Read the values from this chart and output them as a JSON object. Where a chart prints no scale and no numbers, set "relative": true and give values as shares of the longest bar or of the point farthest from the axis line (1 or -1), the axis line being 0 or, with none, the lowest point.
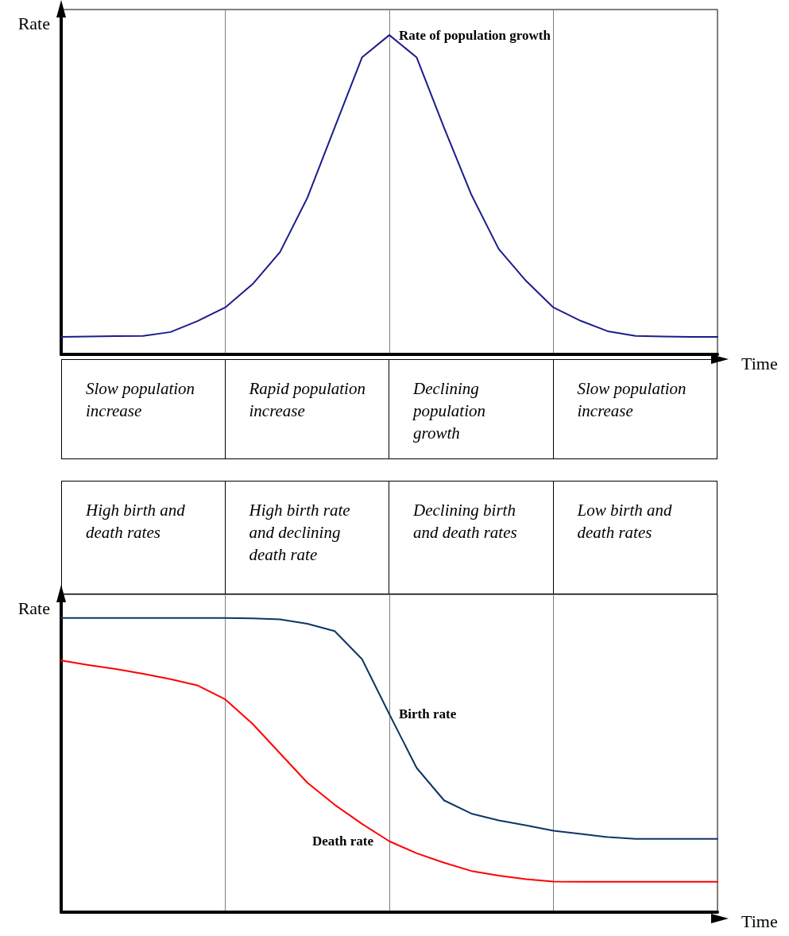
{
  "chart_data": [
    {
      "type": "line",
      "relative": true,
      "xlabel": "Time",
      "ylabel": "Rate",
      "grid": "x",
      "marker": "none",
      "line_style": "solid",
      "categories": [
        null,
        null,
        null,
        null,
        null,
        null,
        null,
        null,
        null,
        null,
        null,
        null,
        null,
        null,
        null,
        null,
        null,
        null,
        null,
        null,
        null,
        null,
        null,
        null,
        null
      ],
      "annotations": [
        "Slow population increase",
        "Rapid population increase",
        "Declining population growth",
        "Slow population increase"
      ],
      "series": [
        {
          "name": "Rate of population growth",
          "color": "#1c1c8c",
          "values": [
            0.055,
            0.056,
            0.057,
            0.058,
            0.07,
            0.105,
            0.147,
            0.22,
            0.32,
            0.49,
            0.71,
            0.93,
            1.0,
            0.93,
            0.71,
            0.5,
            0.33,
            0.23,
            0.147,
            0.105,
            0.072,
            0.058,
            0.056,
            0.055,
            0.055
          ]
        }
      ]
    },
    {
      "type": "line",
      "relative": true,
      "xlabel": "Time",
      "ylabel": "Rate",
      "grid": "x",
      "marker": "none",
      "line_style": "solid",
      "categories": [
        null,
        null,
        null,
        null,
        null,
        null,
        null,
        null,
        null,
        null,
        null,
        null,
        null,
        null,
        null,
        null,
        null,
        null,
        null,
        null,
        null,
        null,
        null,
        null,
        null
      ],
      "annotations": [
        "High birth and death rates",
        "High birth rate and declining death rate",
        "Declining birth and death rates",
        "Low birth and death rates"
      ],
      "series": [
        {
          "name": "Birth rate",
          "color": "#0d3566",
          "values": [
            1.0,
            1.0,
            1.0,
            1.0,
            1.0,
            1.0,
            1.0,
            0.998,
            0.995,
            0.98,
            0.955,
            0.86,
            0.673,
            0.49,
            0.38,
            0.335,
            0.312,
            0.295,
            0.277,
            0.266,
            0.255,
            0.249,
            0.249,
            0.249,
            0.249
          ]
        },
        {
          "name": "Death rate",
          "color": "#ff0000",
          "values": [
            0.855,
            0.84,
            0.826,
            0.81,
            0.792,
            0.77,
            0.723,
            0.64,
            0.54,
            0.44,
            0.365,
            0.3,
            0.241,
            0.2,
            0.168,
            0.14,
            0.124,
            0.112,
            0.104,
            0.103,
            0.103,
            0.103,
            0.103,
            0.103,
            0.103
          ]
        }
      ]
    }
  ]
}
